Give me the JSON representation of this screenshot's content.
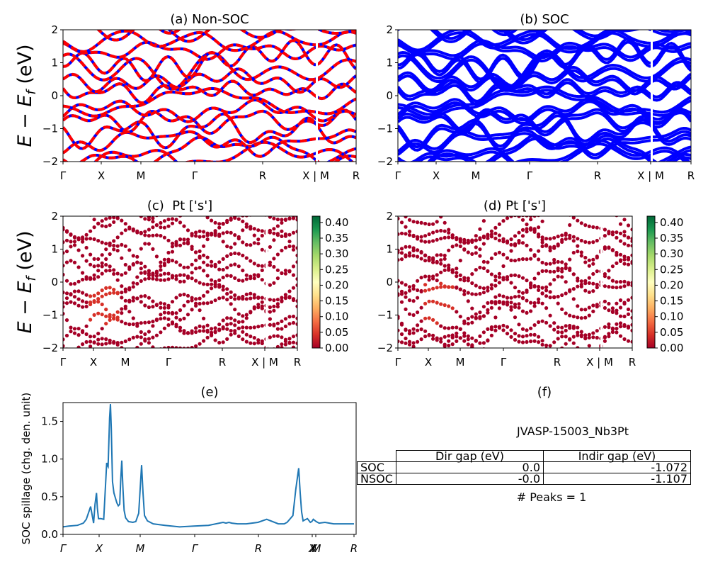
{
  "chart_data": [
    {
      "panel": "a",
      "type": "line",
      "title": "(a) Non-SOC",
      "ylabel": "E - E_f (eV)",
      "ylim": [
        -2,
        2
      ],
      "yticks": [
        "−2",
        "−1",
        "0",
        "1",
        "2"
      ],
      "xticks": [
        "Γ",
        "X",
        "M",
        "Γ",
        "R",
        "X | M",
        "R"
      ],
      "series": [
        {
          "color": "#0000ff",
          "values": "band structure, spin-up (blue)"
        },
        {
          "color": "#ff0000",
          "values": "band structure, spin-down (red dashed)"
        }
      ]
    },
    {
      "panel": "b",
      "type": "line",
      "title": "(b) SOC",
      "ylim": [
        -2,
        2
      ],
      "yticks": [
        "−2",
        "−1",
        "0",
        "1",
        "2"
      ],
      "xticks": [
        "Γ",
        "X",
        "M",
        "Γ",
        "R",
        "X | M",
        "R"
      ],
      "series": [
        {
          "color": "#0000ff"
        }
      ]
    },
    {
      "panel": "c",
      "type": "scatter",
      "title": "(c)  Pt ['s']",
      "ylabel": "E - E_f (eV)",
      "ylim": [
        -2,
        2
      ],
      "yticks": [
        "−2",
        "−1",
        "0",
        "1",
        "2"
      ],
      "xticks": [
        "Γ",
        "X",
        "M",
        "Γ",
        "R",
        "X | M",
        "R"
      ],
      "colorbar": {
        "ticks": [
          "0.00",
          "0.05",
          "0.10",
          "0.15",
          "0.20",
          "0.25",
          "0.30",
          "0.35",
          "0.40"
        ],
        "range": [
          0,
          0.42
        ],
        "colormap": "RdYlGn"
      }
    },
    {
      "panel": "d",
      "type": "scatter",
      "title": "(d) Pt ['s']",
      "ylim": [
        -2,
        2
      ],
      "yticks": [
        "−2",
        "−1",
        "0",
        "1",
        "2"
      ],
      "xticks": [
        "Γ",
        "X",
        "M",
        "Γ",
        "R",
        "X | M",
        "R"
      ],
      "colorbar": {
        "ticks": [
          "0.00",
          "0.05",
          "0.10",
          "0.15",
          "0.20",
          "0.25",
          "0.30",
          "0.35",
          "0.40"
        ],
        "range": [
          0,
          0.42
        ],
        "colormap": "RdYlGn"
      }
    },
    {
      "panel": "e",
      "type": "line",
      "title": "(e)",
      "ylabel": "SOC spillage (chg. den. unit)",
      "ylim": [
        0,
        1.75
      ],
      "yticks": [
        "0.0",
        "0.5",
        "1.0",
        "1.5"
      ],
      "xticks": [
        "Γ",
        "X",
        "M",
        "Γ",
        "R",
        "XX",
        "M",
        "R"
      ],
      "series": [
        {
          "color": "#1f77b4",
          "x": [
            0.0,
            0.02,
            0.05,
            0.07,
            0.08,
            0.095,
            0.105,
            0.11,
            0.115,
            0.118,
            0.122,
            0.126,
            0.13,
            0.14,
            0.15,
            0.152,
            0.155,
            0.16,
            0.163,
            0.166,
            0.17,
            0.175,
            0.185,
            0.19,
            0.195,
            0.198,
            0.202,
            0.206,
            0.21,
            0.215,
            0.225,
            0.24,
            0.25,
            0.26,
            0.27,
            0.275,
            0.28,
            0.29,
            0.31,
            0.35,
            0.4,
            0.45,
            0.5,
            0.55,
            0.56,
            0.57,
            0.58,
            0.6,
            0.63,
            0.67,
            0.7,
            0.74,
            0.76,
            0.77,
            0.79,
            0.8,
            0.81,
            0.815,
            0.82,
            0.825,
            0.83,
            0.835,
            0.84,
            0.85,
            0.855,
            0.86,
            0.87,
            0.88,
            0.9,
            0.93,
            0.97,
            1.0
          ],
          "y": [
            0.1,
            0.11,
            0.12,
            0.15,
            0.2,
            0.37,
            0.15,
            0.4,
            0.55,
            0.35,
            0.21,
            0.21,
            0.21,
            0.2,
            0.95,
            0.92,
            0.9,
            1.55,
            1.73,
            1.4,
            0.7,
            0.55,
            0.42,
            0.38,
            0.4,
            0.7,
            0.98,
            0.6,
            0.32,
            0.22,
            0.17,
            0.16,
            0.17,
            0.28,
            0.92,
            0.55,
            0.25,
            0.18,
            0.14,
            0.12,
            0.1,
            0.11,
            0.12,
            0.16,
            0.15,
            0.16,
            0.15,
            0.14,
            0.14,
            0.16,
            0.2,
            0.14,
            0.14,
            0.16,
            0.25,
            0.6,
            0.88,
            0.55,
            0.3,
            0.18,
            0.19,
            0.2,
            0.21,
            0.16,
            0.17,
            0.2,
            0.17,
            0.15,
            0.16,
            0.14,
            0.14,
            0.14
          ]
        }
      ]
    }
  ],
  "panel_f": {
    "title": "(f)",
    "material": "JVASP-15003_Nb3Pt",
    "table": {
      "headers": [
        "Dir gap (eV)",
        "Indir gap (eV)"
      ],
      "rows": [
        {
          "label": "SOC",
          "dir": "0.0",
          "indir": "-1.072"
        },
        {
          "label": "NSOC",
          "dir": "-0.0",
          "indir": "-1.107"
        }
      ]
    },
    "peaks": "# Peaks = 1"
  }
}
